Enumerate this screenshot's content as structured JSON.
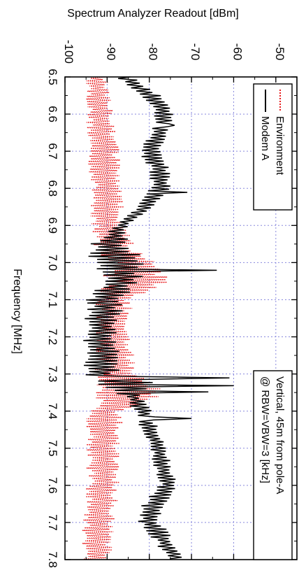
{
  "chart_data": {
    "type": "line",
    "ylabel": "Spectrum Analyzer Readout [dBm]",
    "xlabel": "Frequency [MHz]",
    "annotation": [
      "Vertical, 45m from pole-A",
      "@ RBW=VBW=3 [kHz]"
    ],
    "xlim": [
      6.5,
      7.8
    ],
    "ylim": [
      -100,
      -45
    ],
    "x_ticks": [
      "6.5",
      "6.6",
      "6.7",
      "6.8",
      "6.9",
      "7.0",
      "7.1",
      "7.2",
      "7.3",
      "7.4",
      "7.5",
      "7.6",
      "7.7",
      "7.8"
    ],
    "y_ticks": [
      "-100",
      "-90",
      "-80",
      "-70",
      "-60",
      "-50"
    ],
    "grid": true,
    "legend_position": "top-right",
    "series": [
      {
        "name": "Environment",
        "color": "#e8191b",
        "style": "dotted",
        "low": [
          [
            6.5,
            -95
          ],
          [
            6.6,
            -95
          ],
          [
            6.7,
            -95
          ],
          [
            6.8,
            -94
          ],
          [
            6.9,
            -94
          ],
          [
            6.97,
            -93
          ],
          [
            7.0,
            -91
          ],
          [
            7.05,
            -91
          ],
          [
            7.1,
            -93
          ],
          [
            7.2,
            -93
          ],
          [
            7.3,
            -93
          ],
          [
            7.35,
            -93
          ],
          [
            7.4,
            -95
          ],
          [
            7.5,
            -95
          ],
          [
            7.6,
            -95
          ],
          [
            7.7,
            -96
          ],
          [
            7.8,
            -96
          ]
        ],
        "high": [
          [
            6.5,
            -90
          ],
          [
            6.6,
            -88
          ],
          [
            6.7,
            -87
          ],
          [
            6.8,
            -86
          ],
          [
            6.9,
            -86
          ],
          [
            6.97,
            -82
          ],
          [
            7.0,
            -76
          ],
          [
            7.05,
            -75
          ],
          [
            7.1,
            -84
          ],
          [
            7.2,
            -84
          ],
          [
            7.3,
            -83
          ],
          [
            7.35,
            -75
          ],
          [
            7.4,
            -86
          ],
          [
            7.5,
            -87
          ],
          [
            7.6,
            -87
          ],
          [
            7.7,
            -88
          ],
          [
            7.8,
            -89
          ]
        ]
      },
      {
        "name": "Modem A",
        "color": "#000000",
        "style": "solid",
        "low": [
          [
            6.5,
            -88
          ],
          [
            6.55,
            -82
          ],
          [
            6.6,
            -79
          ],
          [
            6.65,
            -80
          ],
          [
            6.7,
            -83
          ],
          [
            6.75,
            -80
          ],
          [
            6.8,
            -80
          ],
          [
            6.85,
            -83
          ],
          [
            6.9,
            -88
          ],
          [
            6.95,
            -94
          ],
          [
            7.0,
            -95
          ],
          [
            7.05,
            -91
          ],
          [
            7.1,
            -95
          ],
          [
            7.2,
            -96
          ],
          [
            7.3,
            -96
          ],
          [
            7.33,
            -95
          ],
          [
            7.36,
            -86
          ],
          [
            7.4,
            -84
          ],
          [
            7.5,
            -80
          ],
          [
            7.6,
            -78
          ],
          [
            7.65,
            -82
          ],
          [
            7.7,
            -83
          ],
          [
            7.75,
            -79
          ],
          [
            7.8,
            -76
          ]
        ],
        "high": [
          [
            6.5,
            -84
          ],
          [
            6.55,
            -77
          ],
          [
            6.6,
            -74
          ],
          [
            6.65,
            -75
          ],
          [
            6.7,
            -77
          ],
          [
            6.75,
            -75
          ],
          [
            6.8,
            -75
          ],
          [
            6.85,
            -79
          ],
          [
            6.9,
            -85
          ],
          [
            6.95,
            -85
          ],
          [
            7.0,
            -80
          ],
          [
            7.05,
            -82
          ],
          [
            7.1,
            -86
          ],
          [
            7.2,
            -87
          ],
          [
            7.3,
            -87
          ],
          [
            7.33,
            -75
          ],
          [
            7.36,
            -82
          ],
          [
            7.4,
            -79
          ],
          [
            7.5,
            -76
          ],
          [
            7.6,
            -73
          ],
          [
            7.65,
            -76
          ],
          [
            7.7,
            -77
          ],
          [
            7.75,
            -74
          ],
          [
            7.8,
            -71
          ]
        ],
        "peaks": [
          [
            6.63,
            -74
          ],
          [
            6.81,
            -71
          ],
          [
            7.02,
            -64
          ],
          [
            7.31,
            -61
          ],
          [
            7.33,
            -60
          ],
          [
            7.35,
            -66
          ],
          [
            7.42,
            -70
          ]
        ]
      }
    ]
  }
}
